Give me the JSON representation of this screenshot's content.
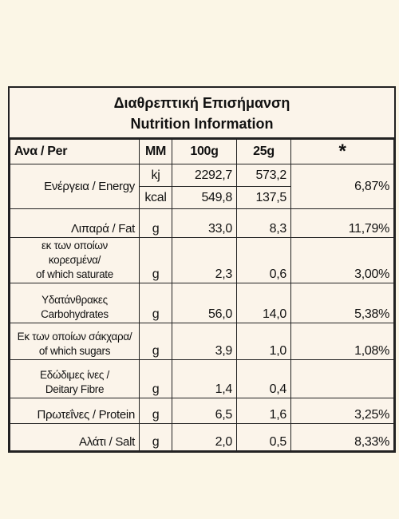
{
  "title": [
    "Διαθρεπτική Επισήμανση",
    "Nutrition Information"
  ],
  "header": [
    "Ανα / Per",
    "MM",
    "100g",
    "25g",
    "*"
  ],
  "energy": {
    "label": "Ενέργεια / Energy",
    "percent": "6,87%",
    "lines": [
      {
        "unit": "kj",
        "per100g": "2292,7",
        "per25g": "573,2"
      },
      {
        "unit": "kcal",
        "per100g": "549,8",
        "per25g": "137,5"
      }
    ]
  },
  "rows": [
    {
      "label": [
        "Λιπαρά / Fat"
      ],
      "unit": "g",
      "per100g": "33,0",
      "per25g": "8,3",
      "percent": "11,79%"
    },
    {
      "label": [
        "εκ των οποίων κορεσμένα/",
        "of which saturate"
      ],
      "unit": "g",
      "per100g": "2,3",
      "per25g": "0,6",
      "percent": "3,00%"
    },
    {
      "label": [
        "Υδατάνθρακες",
        "Carbohydrates"
      ],
      "unit": "g",
      "per100g": "56,0",
      "per25g": "14,0",
      "percent": "5,38%"
    },
    {
      "label": [
        "Εκ των οποίων σάκχαρα/",
        "of which sugars"
      ],
      "unit": "g",
      "per100g": "3,9",
      "per25g": "1,0",
      "percent": "1,08%"
    },
    {
      "label": [
        "Εδώδιμες ίνες /",
        "Deitary Fibre"
      ],
      "unit": "g",
      "per100g": "1,4",
      "per25g": "0,4",
      "percent": "-"
    },
    {
      "label": [
        "Πρωτεΐνες / Protein"
      ],
      "unit": "g",
      "per100g": "6,5",
      "per25g": "1,6",
      "percent": "3,25%"
    },
    {
      "label": [
        "Αλάτι / Salt"
      ],
      "unit": "g",
      "per100g": "2,0",
      "per25g": "0,5",
      "percent": "8,33%"
    }
  ]
}
